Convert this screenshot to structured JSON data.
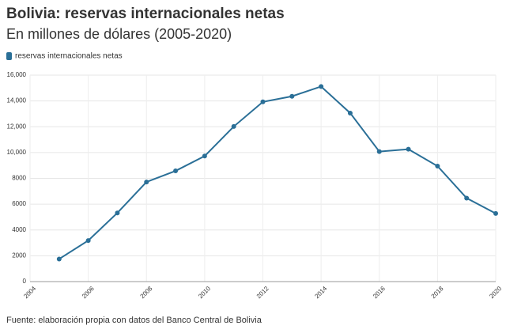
{
  "chart_data": {
    "type": "line",
    "title": "Bolivia: reservas internacionales netas",
    "subtitle": "En millones de dólares (2005-2020)",
    "source": "Fuente: elaboración propia con datos del Banco Central de Bolivia",
    "x": [
      2005,
      2006,
      2007,
      2008,
      2009,
      2010,
      2011,
      2012,
      2013,
      2014,
      2015,
      2016,
      2017,
      2018,
      2019,
      2020
    ],
    "series": [
      {
        "name": "reservas internacionales netas",
        "color": "#2a6f97",
        "values": [
          1750,
          3180,
          5320,
          7720,
          8580,
          9730,
          12020,
          13930,
          14360,
          15120,
          13060,
          10080,
          10260,
          8950,
          6470,
          5280
        ]
      }
    ],
    "xlim": [
      2004,
      2020
    ],
    "xticks": [
      2004,
      2006,
      2008,
      2010,
      2012,
      2014,
      2016,
      2018,
      2020
    ],
    "ylim": [
      0,
      16000
    ],
    "yticks": [
      0,
      2000,
      4000,
      6000,
      8000,
      {
        "value": 10000,
        "label": "10,000"
      },
      {
        "value": 12000,
        "label": "12,000"
      },
      {
        "value": 14000,
        "label": "14,000"
      },
      {
        "value": 16000,
        "label": "16,000"
      }
    ],
    "grid": true,
    "legend": "top-left"
  }
}
